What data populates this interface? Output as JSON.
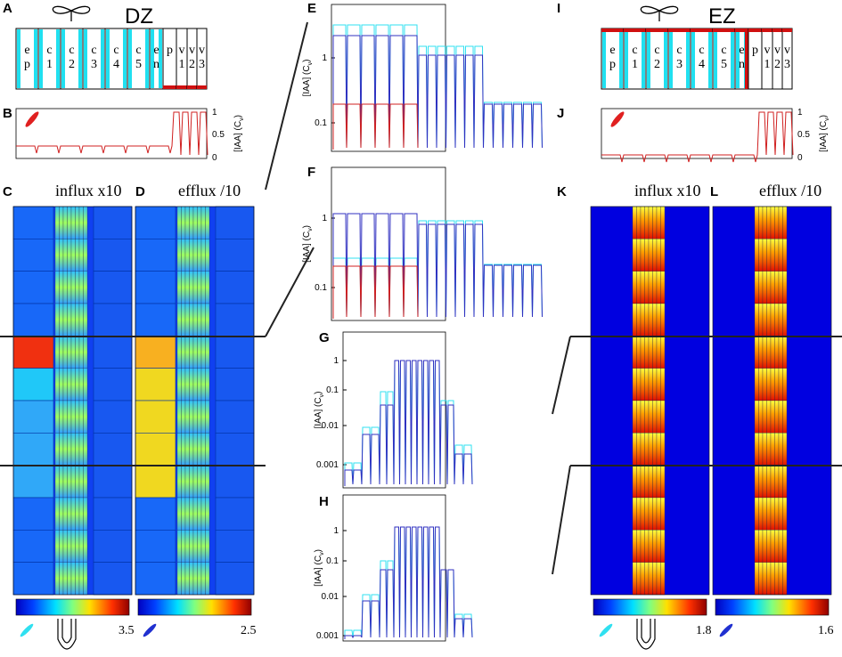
{
  "panels": {
    "A": {
      "letter": "A",
      "title": "DZ",
      "cells": [
        [
          "e",
          "p"
        ],
        [
          "c",
          "1"
        ],
        [
          "c",
          "2"
        ],
        [
          "c",
          "3"
        ],
        [
          "c",
          "4"
        ],
        [
          "c",
          "5"
        ],
        [
          "e",
          "n"
        ],
        [
          "p"
        ],
        [
          "v",
          "1"
        ],
        [
          "v",
          "2"
        ],
        [
          "v",
          "3"
        ]
      ]
    },
    "B": {
      "letter": "B",
      "ylabel": [
        "[IAA] (C",
        "v",
        ")"
      ],
      "yticks": [
        "1",
        "0.5",
        "0"
      ]
    },
    "C": {
      "letter": "C",
      "title": "influx x10",
      "colorbar_max": "3.5"
    },
    "D": {
      "letter": "D",
      "title": "efflux /10",
      "colorbar_max": "2.5"
    },
    "E": {
      "letter": "E",
      "ylabel": [
        "[IAA] (C",
        "v",
        ")"
      ],
      "yticks": [
        "1",
        "0.1"
      ]
    },
    "F": {
      "letter": "F",
      "ylabel": [
        "[IAA] (C",
        "v",
        ")"
      ],
      "yticks": [
        "1",
        "0.1"
      ]
    },
    "G": {
      "letter": "G",
      "ylabel": [
        "[IAA] (C",
        "v",
        ")"
      ],
      "yticks": [
        "1",
        "0.1",
        "0.01",
        "0.001"
      ]
    },
    "H": {
      "letter": "H",
      "ylabel": [
        "[IAA] (C",
        "v",
        ")"
      ],
      "yticks": [
        "1",
        "0.1",
        "0.01",
        "0.001"
      ]
    },
    "I": {
      "letter": "I",
      "title": "EZ",
      "cells": [
        [
          "e",
          "p"
        ],
        [
          "c",
          "1"
        ],
        [
          "c",
          "2"
        ],
        [
          "c",
          "3"
        ],
        [
          "c",
          "4"
        ],
        [
          "c",
          "5"
        ],
        [
          "e",
          "n"
        ],
        [
          "p"
        ],
        [
          "v",
          "1"
        ],
        [
          "v",
          "2"
        ],
        [
          "v",
          "3"
        ]
      ]
    },
    "J": {
      "letter": "J",
      "ylabel": [
        "[IAA] (C",
        "v",
        ")"
      ],
      "yticks": [
        "1",
        "0.5",
        "0"
      ]
    },
    "K": {
      "letter": "K",
      "title": "influx x10",
      "colorbar_max": "1.8"
    },
    "L": {
      "letter": "L",
      "title": "efflux /10",
      "colorbar_max": "1.6"
    }
  }
}
